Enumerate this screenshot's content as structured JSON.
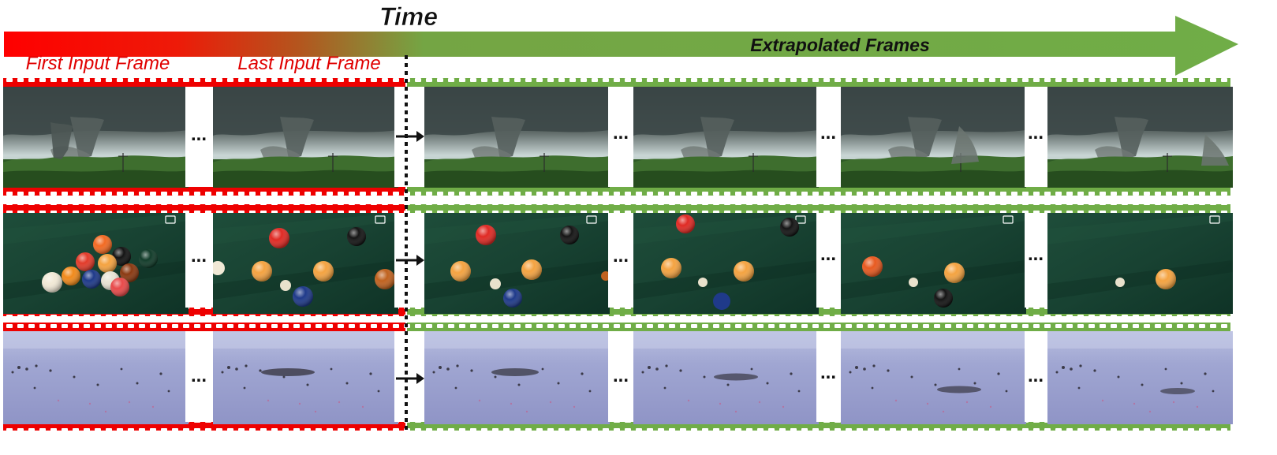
{
  "time_label": "Time",
  "extrapolated_label": "Extrapolated Frames",
  "first_input_label": "First Input Frame",
  "last_input_label": "Last Input Frame",
  "ellipsis": "...",
  "colors": {
    "input": "#ee0000",
    "extrapolated": "#70ad47",
    "arrow_dark": "#111111",
    "label_red": "#e00000"
  },
  "rows": [
    {
      "scene": "tornado"
    },
    {
      "scene": "billiards"
    },
    {
      "scene": "ants"
    }
  ]
}
